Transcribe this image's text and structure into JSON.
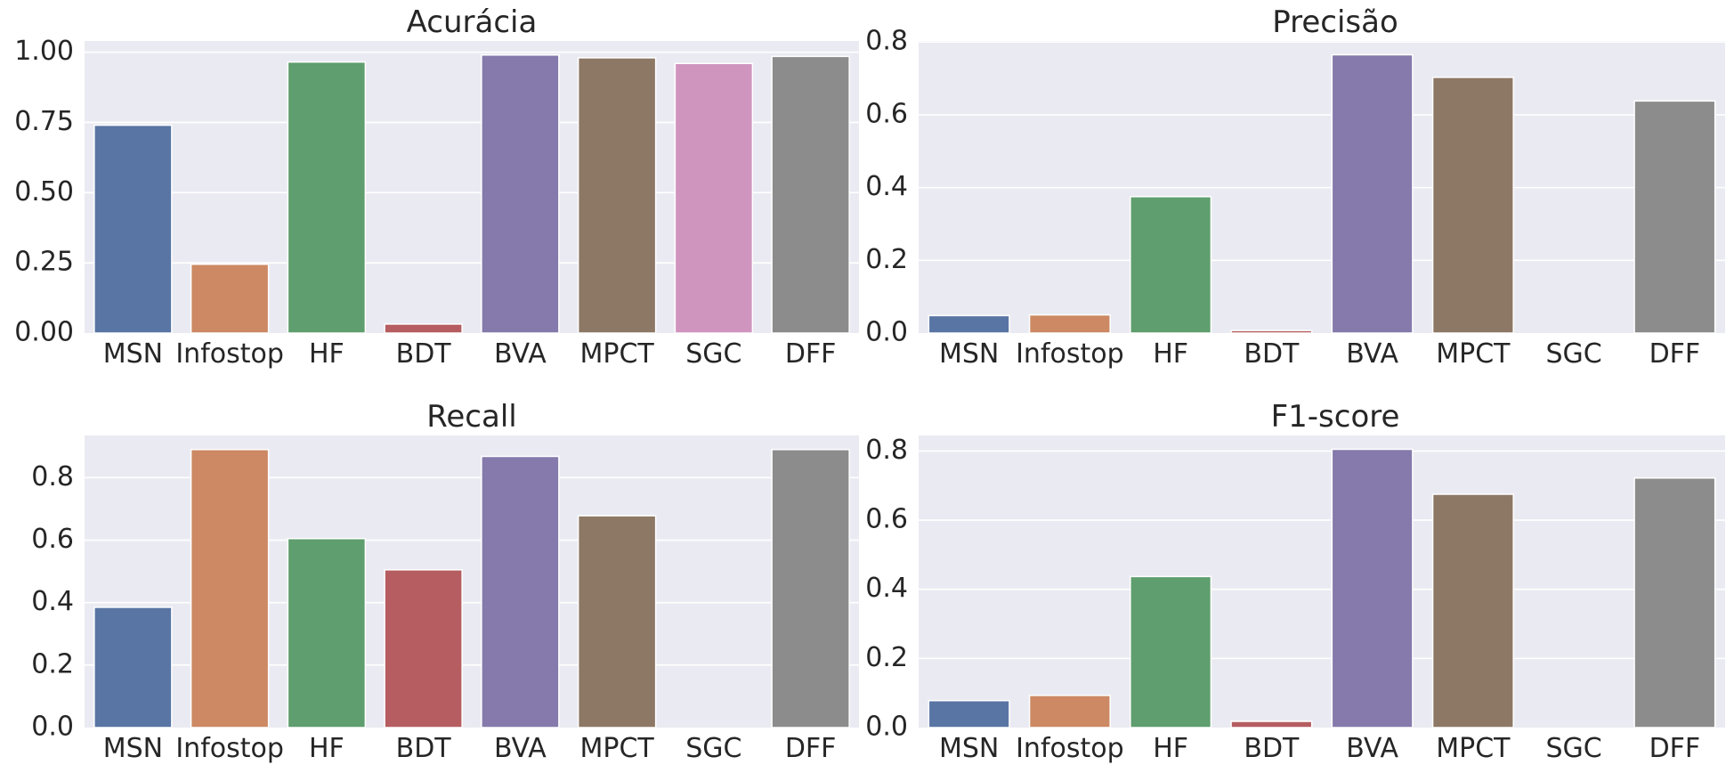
{
  "palette": [
    "#5875A4",
    "#CC8963",
    "#5F9E6E",
    "#B55D60",
    "#857AAB",
    "#8D7866",
    "#D095BF",
    "#8C8C8C"
  ],
  "chart_data": [
    {
      "type": "bar",
      "title": "Acurácia",
      "categories": [
        "MSN",
        "Infostop",
        "HF",
        "BDT",
        "BVA",
        "MPCT",
        "SGC",
        "DFF"
      ],
      "values": [
        0.74,
        0.245,
        0.965,
        0.032,
        0.99,
        0.98,
        0.96,
        0.985
      ],
      "ylim": [
        0,
        1.04
      ],
      "yticks": [
        0.0,
        0.25,
        0.5,
        0.75,
        1.0
      ],
      "ytick_labels": [
        "0.00",
        "0.25",
        "0.50",
        "0.75",
        "1.00"
      ],
      "grid": true
    },
    {
      "type": "bar",
      "title": "Precisão",
      "categories": [
        "MSN",
        "Infostop",
        "HF",
        "BDT",
        "BVA",
        "MPCT",
        "SGC",
        "DFF"
      ],
      "values": [
        0.048,
        0.05,
        0.375,
        0.007,
        0.765,
        0.703,
        0.0,
        0.638
      ],
      "ylim": [
        0,
        0.803
      ],
      "yticks": [
        0.0,
        0.2,
        0.4,
        0.6,
        0.8
      ],
      "ytick_labels": [
        "0.0",
        "0.2",
        "0.4",
        "0.6",
        "0.8"
      ],
      "grid": true
    },
    {
      "type": "bar",
      "title": "Recall",
      "categories": [
        "MSN",
        "Infostop",
        "HF",
        "BDT",
        "BVA",
        "MPCT",
        "SGC",
        "DFF"
      ],
      "values": [
        0.385,
        0.89,
        0.605,
        0.505,
        0.868,
        0.678,
        0.0,
        0.89
      ],
      "ylim": [
        0,
        0.935
      ],
      "yticks": [
        0.0,
        0.2,
        0.4,
        0.6,
        0.8
      ],
      "ytick_labels": [
        "0.0",
        "0.2",
        "0.4",
        "0.6",
        "0.8"
      ],
      "grid": true
    },
    {
      "type": "bar",
      "title": "F1-score",
      "categories": [
        "MSN",
        "Infostop",
        "HF",
        "BDT",
        "BVA",
        "MPCT",
        "SGC",
        "DFF"
      ],
      "values": [
        0.078,
        0.093,
        0.437,
        0.018,
        0.805,
        0.675,
        0.0,
        0.722
      ],
      "ylim": [
        0,
        0.845
      ],
      "yticks": [
        0.0,
        0.2,
        0.4,
        0.6,
        0.8
      ],
      "ytick_labels": [
        "0.0",
        "0.2",
        "0.4",
        "0.6",
        "0.8"
      ],
      "grid": true
    }
  ]
}
